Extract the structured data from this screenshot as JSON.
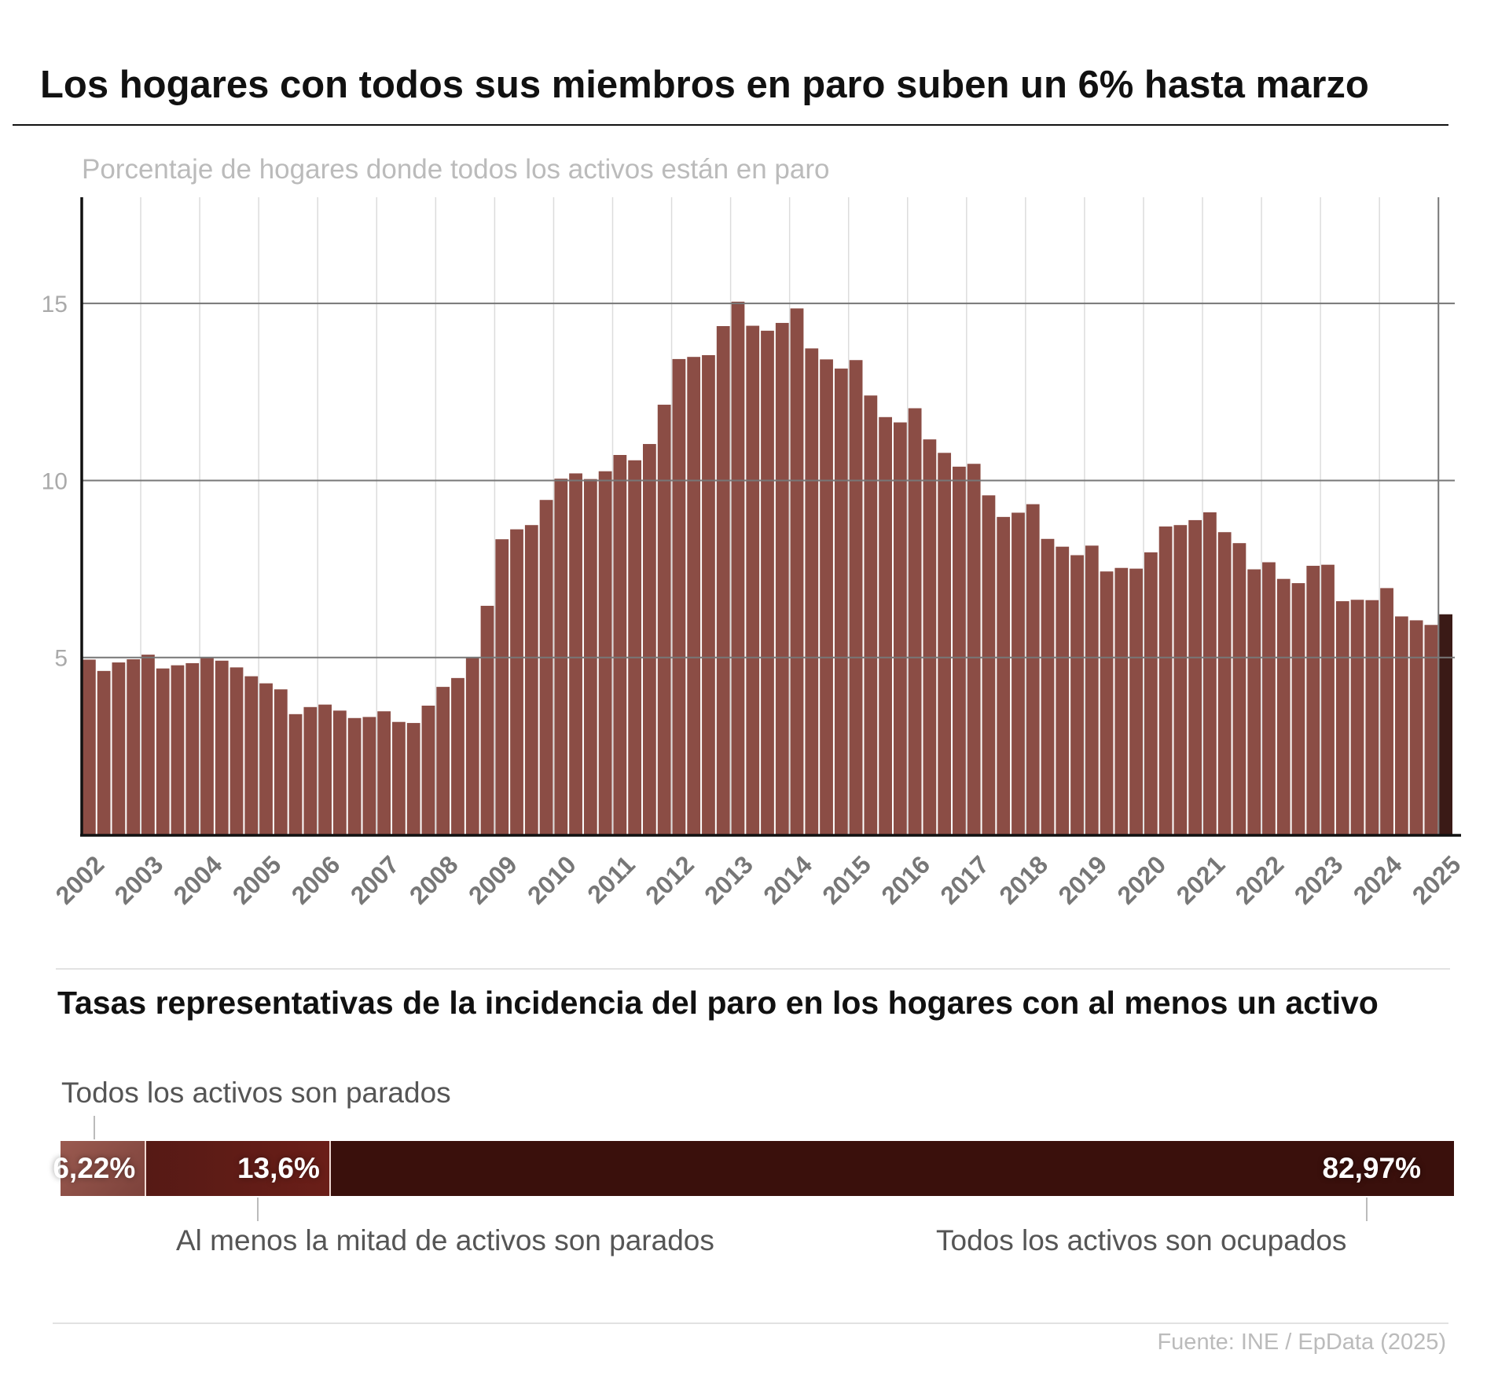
{
  "header": {
    "title": "Los hogares con todos sus miembros en paro suben un 6% hasta marzo",
    "subtitle": "Porcentaje de hogares donde todos los activos están en paro"
  },
  "chart_data": [
    {
      "type": "bar",
      "title": "Los hogares con todos sus miembros en paro suben un 6% hasta marzo",
      "subtitle": "Porcentaje de hogares donde todos los activos están en paro",
      "frequency": "quarterly",
      "start": "2002",
      "x_tick_labels": [
        "2002",
        "2003",
        "2004",
        "2005",
        "2006",
        "2007",
        "2008",
        "2009",
        "2010",
        "2011",
        "2012",
        "2013",
        "2014",
        "2015",
        "2016",
        "2017",
        "2018",
        "2019",
        "2020",
        "2021",
        "2022",
        "2023",
        "2024",
        "2025"
      ],
      "y_tick_labels": [
        "5",
        "10",
        "15"
      ],
      "y_ticks": [
        5,
        10,
        15
      ],
      "ylim": [
        0,
        18
      ],
      "grid": true,
      "values": [
        4.94,
        4.62,
        4.86,
        4.95,
        5.08,
        4.69,
        4.78,
        4.84,
        5.0,
        4.91,
        4.72,
        4.47,
        4.27,
        4.1,
        3.4,
        3.6,
        3.67,
        3.5,
        3.29,
        3.32,
        3.48,
        3.18,
        3.15,
        3.64,
        4.17,
        4.42,
        5.0,
        6.46,
        8.34,
        8.62,
        8.74,
        9.45,
        10.05,
        10.2,
        10.04,
        10.26,
        10.72,
        10.57,
        11.03,
        12.14,
        13.43,
        13.49,
        13.54,
        14.36,
        15.05,
        14.37,
        14.23,
        14.45,
        14.86,
        13.73,
        13.42,
        13.16,
        13.4,
        12.4,
        11.79,
        11.64,
        12.04,
        11.16,
        10.78,
        10.39,
        10.47,
        9.58,
        8.97,
        9.09,
        9.33,
        8.35,
        8.13,
        7.89,
        8.16,
        7.43,
        7.53,
        7.51,
        7.97,
        8.7,
        8.74,
        8.88,
        9.1,
        8.54,
        8.23,
        7.49,
        7.69,
        7.22,
        7.1,
        7.59,
        7.62,
        6.59,
        6.63,
        6.62,
        6.96,
        6.16,
        6.05,
        5.92,
        6.22
      ],
      "colors": {
        "bar": "#8b4d45",
        "highlight": "#3a1a16"
      },
      "highlight_last": true
    },
    {
      "type": "bar",
      "orientation": "horizontal-stacked",
      "title": "Tasas representativas de la incidencia del paro en los hogares con al menos un activo",
      "segments": [
        {
          "label": "Todos los activos son parados",
          "value": 6.22,
          "value_label": "6,22%",
          "color": "#8a4a43"
        },
        {
          "label": "Al menos la mitad de activos son parados",
          "value": 13.6,
          "value_label": "13,6%",
          "color": "#6a1e18"
        },
        {
          "label": "Todos los activos son ocupados",
          "value": 82.97,
          "value_label": "82,97%",
          "color": "#3a100c"
        }
      ]
    }
  ],
  "footer": {
    "source": "Fuente: INE / EpData (2025)"
  }
}
